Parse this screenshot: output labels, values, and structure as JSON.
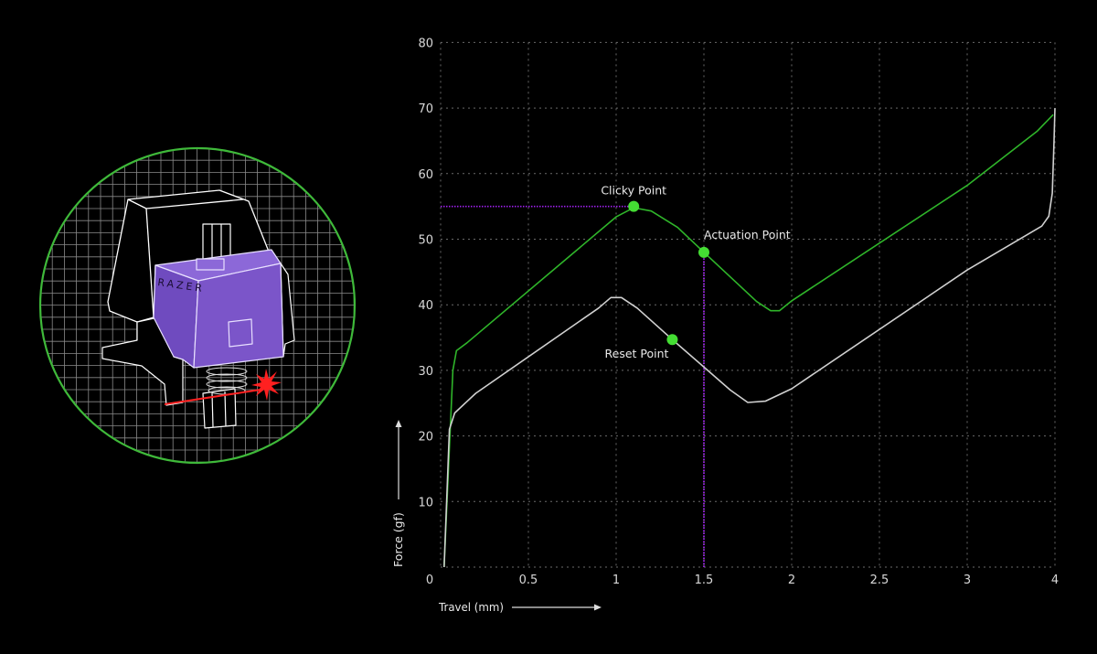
{
  "illustration": {
    "logo_text": "RAZER",
    "ring_color": "#3fb93a",
    "housing_color": "#7b55c9",
    "laser_color": "#ff2020"
  },
  "chart_data": {
    "type": "line",
    "title": "",
    "xlabel": "Travel (mm)",
    "ylabel": "Force (gf)",
    "x_tick_labels": [
      "0",
      "0.5",
      "1",
      "1.5",
      "2",
      "2.5",
      "3",
      "4"
    ],
    "x_tick_values": [
      0,
      0.5,
      1,
      1.5,
      2,
      2.5,
      3,
      4
    ],
    "y_tick_labels": [
      "10",
      "20",
      "30",
      "40",
      "50",
      "60",
      "70",
      "80"
    ],
    "y_tick_values": [
      10,
      20,
      30,
      40,
      50,
      60,
      70,
      80
    ],
    "xlim": [
      0,
      4
    ],
    "ylim": [
      0,
      80
    ],
    "grid": true,
    "grid_style": "dotted",
    "legend": "none",
    "series": [
      {
        "color": "#2fb52a",
        "points": [
          [
            0.02,
            0
          ],
          [
            0.07,
            30
          ],
          [
            0.09,
            33
          ],
          [
            0.15,
            34.2
          ],
          [
            1.0,
            53.4
          ],
          [
            1.1,
            54.8
          ],
          [
            1.2,
            54.3
          ],
          [
            1.35,
            51.8
          ],
          [
            1.5,
            48
          ],
          [
            1.8,
            40.5
          ],
          [
            1.88,
            39.1
          ],
          [
            1.93,
            39.1
          ],
          [
            2.0,
            40.6
          ],
          [
            3,
            58.2
          ],
          [
            3.8,
            66.5
          ],
          [
            3.98,
            69
          ]
        ]
      },
      {
        "color": "#d0d0d0",
        "points": [
          [
            0.02,
            0
          ],
          [
            0.05,
            21
          ],
          [
            0.08,
            23.5
          ],
          [
            0.2,
            26.5
          ],
          [
            0.9,
            39.5
          ],
          [
            0.97,
            41.1
          ],
          [
            1.03,
            41.1
          ],
          [
            1.12,
            39.5
          ],
          [
            1.32,
            34.7
          ],
          [
            1.65,
            27
          ],
          [
            1.75,
            25.1
          ],
          [
            1.85,
            25.3
          ],
          [
            2.0,
            27.2
          ],
          [
            3,
            45.3
          ],
          [
            3.85,
            52
          ],
          [
            3.93,
            53.5
          ],
          [
            3.97,
            57
          ],
          [
            3.99,
            65
          ],
          [
            4,
            70
          ]
        ]
      }
    ],
    "annotations": [
      {
        "label": "Clicky Point",
        "x": 1.1,
        "y": 55
      },
      {
        "label": "Actuation Point",
        "x": 1.5,
        "y": 48
      },
      {
        "label": "Reset Point",
        "x": 1.32,
        "y": 34.7
      }
    ],
    "marker_color": "#44dd33",
    "reference_lines": [
      {
        "orientation": "horizontal",
        "y": 55,
        "x_from": 0,
        "x_to": 1.1,
        "color": "#a020f0"
      },
      {
        "orientation": "vertical",
        "x": 1.5,
        "y_from": 0,
        "y_to": 48,
        "color": "#a020f0"
      }
    ]
  }
}
